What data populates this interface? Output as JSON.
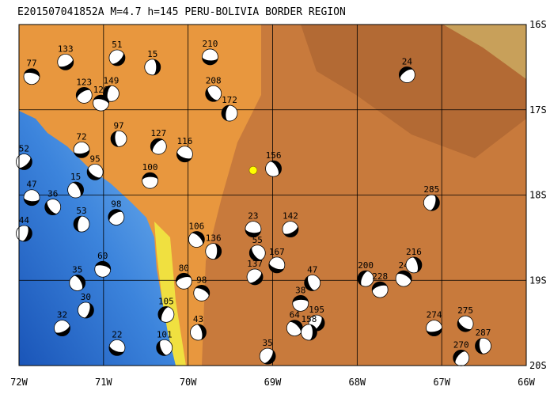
{
  "title": "E201507041852A M=4.7 h=145 PERU-BOLIVIA BORDER REGION",
  "xlim": [
    -72,
    -66
  ],
  "ylim": [
    -20,
    -16
  ],
  "xticks": [
    {
      "value": -72,
      "label": "72W"
    },
    {
      "value": -71,
      "label": "71W"
    },
    {
      "value": -70,
      "label": "70W"
    },
    {
      "value": -69,
      "label": "69W"
    },
    {
      "value": -68,
      "label": "68W"
    },
    {
      "value": -67,
      "label": "67W"
    },
    {
      "value": -66,
      "label": "66W"
    }
  ],
  "yticks": [
    {
      "value": -16,
      "label": "16S"
    },
    {
      "value": -17,
      "label": "17S"
    },
    {
      "value": -18,
      "label": "18S"
    },
    {
      "value": -19,
      "label": "19S"
    },
    {
      "value": -20,
      "label": "20S"
    }
  ],
  "grid": true,
  "epicenter": {
    "lon": -69.23,
    "lat": -17.71
  },
  "events": [
    {
      "lon": -70.42,
      "lat": -16.5,
      "depth": 15
    },
    {
      "lon": -70.84,
      "lat": -16.39,
      "depth": 51
    },
    {
      "lon": -69.74,
      "lat": -16.38,
      "depth": 210
    },
    {
      "lon": -69.7,
      "lat": -16.81,
      "depth": 208
    },
    {
      "lon": -69.51,
      "lat": -17.04,
      "depth": 172
    },
    {
      "lon": -67.41,
      "lat": -16.59,
      "depth": 24
    },
    {
      "lon": -71.85,
      "lat": -16.61,
      "depth": 77
    },
    {
      "lon": -68.99,
      "lat": -17.69,
      "depth": 156
    },
    {
      "lon": -67.12,
      "lat": -18.09,
      "depth": 285
    },
    {
      "lon": -68.79,
      "lat": -18.4,
      "depth": 142
    },
    {
      "lon": -68.95,
      "lat": -18.82,
      "depth": 167
    },
    {
      "lon": -68.53,
      "lat": -19.03,
      "depth": 47
    },
    {
      "lon": -67.9,
      "lat": -18.98,
      "depth": 200
    },
    {
      "lon": -67.73,
      "lat": -19.11,
      "depth": 228
    },
    {
      "lon": -67.45,
      "lat": -18.98,
      "depth": 24
    },
    {
      "lon": -67.33,
      "lat": -18.82,
      "depth": 216
    },
    {
      "lon": -68.48,
      "lat": -19.5,
      "depth": 195
    },
    {
      "lon": -67.09,
      "lat": -19.56,
      "depth": 274
    },
    {
      "lon": -66.72,
      "lat": -19.51,
      "depth": 275
    },
    {
      "lon": -66.51,
      "lat": -19.77,
      "depth": 287
    },
    {
      "lon": -66.77,
      "lat": -19.91,
      "depth": 270
    },
    {
      "lon": -68.67,
      "lat": -19.27,
      "depth": 38
    },
    {
      "lon": -68.74,
      "lat": -19.56,
      "depth": 64
    },
    {
      "lon": -68.57,
      "lat": -19.61,
      "depth": 158
    },
    {
      "lon": -71.94,
      "lat": -17.61,
      "depth": 52
    },
    {
      "lon": -71.85,
      "lat": -18.03,
      "depth": 47
    },
    {
      "lon": -71.6,
      "lat": -18.14,
      "depth": 36
    },
    {
      "lon": -71.26,
      "lat": -18.34,
      "depth": 53
    },
    {
      "lon": -70.85,
      "lat": -18.26,
      "depth": 98
    },
    {
      "lon": -71.01,
      "lat": -18.87,
      "depth": 60
    },
    {
      "lon": -71.31,
      "lat": -19.03,
      "depth": 35
    },
    {
      "lon": -71.21,
      "lat": -19.35,
      "depth": 30
    },
    {
      "lon": -71.49,
      "lat": -19.56,
      "depth": 32
    },
    {
      "lon": -70.84,
      "lat": -19.79,
      "depth": 22
    },
    {
      "lon": -70.28,
      "lat": -19.79,
      "depth": 101
    },
    {
      "lon": -70.26,
      "lat": -19.4,
      "depth": 105
    },
    {
      "lon": -70.05,
      "lat": -19.01,
      "depth": 80
    },
    {
      "lon": -69.84,
      "lat": -19.15,
      "depth": 98
    },
    {
      "lon": -69.88,
      "lat": -19.61,
      "depth": 43
    },
    {
      "lon": -69.06,
      "lat": -19.89,
      "depth": 35
    },
    {
      "lon": -71.26,
      "lat": -17.47,
      "depth": 72
    },
    {
      "lon": -71.1,
      "lat": -17.73,
      "depth": 95
    },
    {
      "lon": -70.82,
      "lat": -17.34,
      "depth": 97
    },
    {
      "lon": -70.35,
      "lat": -17.43,
      "depth": 127
    },
    {
      "lon": -70.45,
      "lat": -17.83,
      "depth": 100
    },
    {
      "lon": -69.9,
      "lat": -18.52,
      "depth": 106
    },
    {
      "lon": -69.7,
      "lat": -18.66,
      "depth": 136
    },
    {
      "lon": -69.21,
      "lat": -18.96,
      "depth": 137
    },
    {
      "lon": -69.23,
      "lat": -18.4,
      "depth": 23
    },
    {
      "lon": -69.18,
      "lat": -18.68,
      "depth": 55
    },
    {
      "lon": -70.91,
      "lat": -16.81,
      "depth": 149
    },
    {
      "lon": -71.23,
      "lat": -16.83,
      "depth": 123
    },
    {
      "lon": -71.03,
      "lat": -16.92,
      "depth": 126
    },
    {
      "lon": -71.33,
      "lat": -17.94,
      "depth": 15
    },
    {
      "lon": -71.94,
      "lat": -18.45,
      "depth": 44
    },
    {
      "lon": -71.45,
      "lat": -16.44,
      "depth": 133
    },
    {
      "lon": -70.04,
      "lat": -17.52,
      "depth": 116
    }
  ]
}
